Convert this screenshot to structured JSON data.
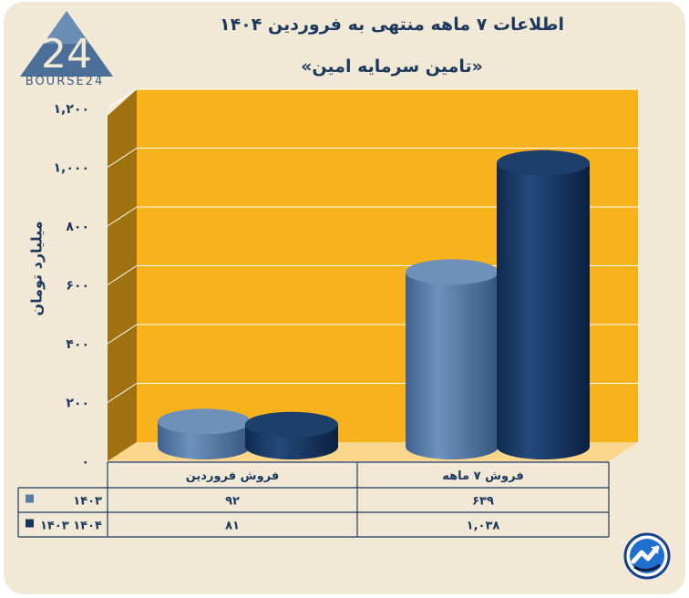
{
  "title": "اطلاعات ۷ ماهه منتهی به فروردین ۱۴۰۴",
  "subtitle": "«تامین سرمایه امین»",
  "logo": {
    "text": "BOURSE24",
    "mark": "24"
  },
  "colors": {
    "panel": "#f2e8d6",
    "plot_back": "#f8b31c",
    "plot_side": "#a0720f",
    "plot_floor": "#fcd68a",
    "series_1403": "#5a7ea8",
    "series_1404": "#17355e",
    "text": "#1c3a5e"
  },
  "chart_data": {
    "type": "bar",
    "bar_style": "3d-cylinder",
    "ylabel": "میلیارد تومان",
    "ylim": [
      0,
      1200
    ],
    "yticks": [
      {
        "value": 0,
        "label": "۰"
      },
      {
        "value": 200,
        "label": "۲۰۰"
      },
      {
        "value": 400,
        "label": "۴۰۰"
      },
      {
        "value": 600,
        "label": "۶۰۰"
      },
      {
        "value": 800,
        "label": "۸۰۰"
      },
      {
        "value": 1000,
        "label": "۱,۰۰۰"
      },
      {
        "value": 1200,
        "label": "۱,۲۰۰"
      }
    ],
    "grid": true,
    "legend": "data-table",
    "categories": [
      "فروش فروردین",
      "فروش ۷ ماهه"
    ],
    "series": [
      {
        "name": "۱۴۰۳",
        "values": [
          92,
          639
        ],
        "labels": [
          "۹۲",
          "۶۳۹"
        ]
      },
      {
        "name": "۱۴۰۳ ۱۴۰۴",
        "values": [
          81,
          1038
        ],
        "labels": [
          "۸۱",
          "۱,۰۳۸"
        ]
      }
    ]
  }
}
